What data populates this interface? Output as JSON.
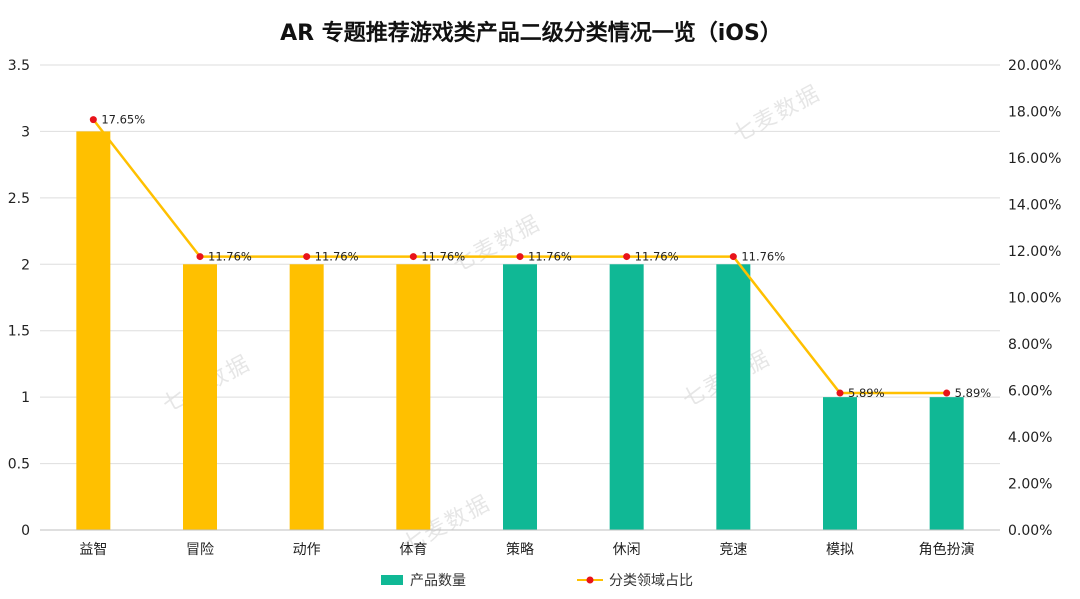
{
  "chart_data": {
    "type": "bar+line",
    "title": "AR 专题推荐游戏类产品二级分类情况一览（iOS）",
    "categories": [
      "益智",
      "冒险",
      "动作",
      "体育",
      "策略",
      "休闲",
      "竞速",
      "模拟",
      "角色扮演"
    ],
    "bar_series": {
      "name": "产品数量",
      "values": [
        3,
        2,
        2,
        2,
        2,
        2,
        2,
        1,
        1
      ],
      "colors": [
        "#FFC000",
        "#FFC000",
        "#FFC000",
        "#FFC000",
        "#10B895",
        "#10B895",
        "#10B895",
        "#10B895",
        "#10B895"
      ],
      "legend_color": "#10B895"
    },
    "line_series": {
      "name": "分类领域占比",
      "values": [
        17.65,
        11.76,
        11.76,
        11.76,
        11.76,
        11.76,
        11.76,
        5.89,
        5.89
      ],
      "labels": [
        "17.65%",
        "11.76%",
        "11.76%",
        "11.76%",
        "11.76%",
        "11.76%",
        "11.76%",
        "5.89%",
        "5.89%"
      ],
      "line_color": "#FFC000",
      "marker_color": "#E8131A"
    },
    "y_left": {
      "min": 0,
      "max": 3.5,
      "ticks": [
        "0",
        "0.5",
        "1",
        "1.5",
        "2",
        "2.5",
        "3",
        "3.5"
      ]
    },
    "y_right": {
      "min": 0,
      "max": 20,
      "ticks": [
        "0.00%",
        "2.00%",
        "4.00%",
        "6.00%",
        "8.00%",
        "10.00%",
        "12.00%",
        "14.00%",
        "16.00%",
        "18.00%",
        "20.00%"
      ]
    },
    "grid": true,
    "legend": "bottom",
    "watermark": "七麦数据"
  }
}
